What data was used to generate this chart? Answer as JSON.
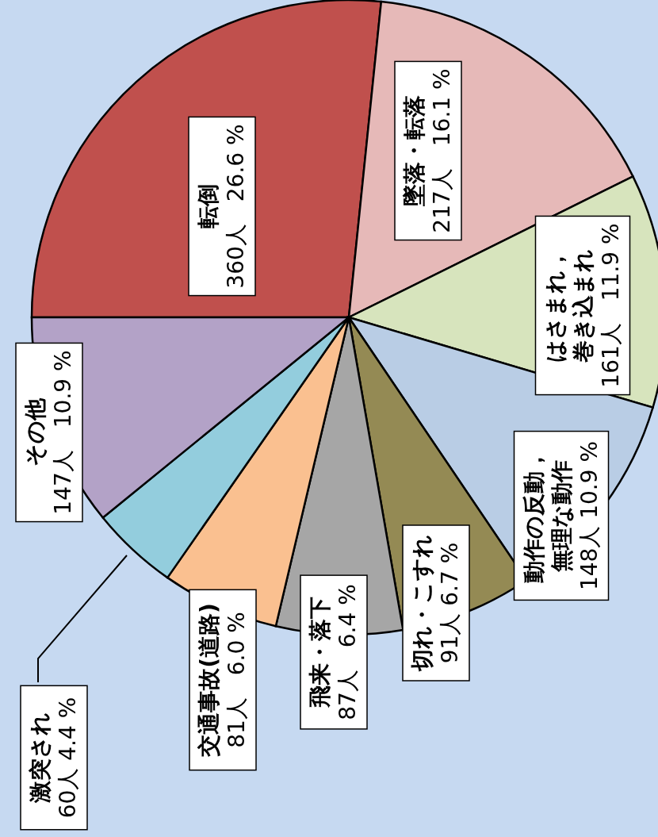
{
  "chart_data": {
    "type": "pie",
    "categories": [
      "転倒",
      "墜落・転落",
      "はさまれ，巻き込まれ",
      "動作の反動，無理な動作",
      "切れ・こすれ",
      "飛来・落下",
      "交通事故(道路)",
      "激突され",
      "その他"
    ],
    "values": [
      360,
      217,
      161,
      148,
      91,
      87,
      81,
      60,
      147
    ],
    "colors": [
      "#c0504d",
      "#e6b9b8",
      "#d7e4bd",
      "#b9cde5",
      "#948a54",
      "#a6a6a6",
      "#fac090",
      "#93cddd",
      "#b3a2c7"
    ],
    "value_labels": [
      "360人　26.6 %",
      "217人　16.1 %",
      "161人　11.9 %",
      "148人 10.9 %",
      "91人 6.7 %",
      "87人　6.4 %",
      "81人　6.0 %",
      "60人 4.4 %",
      "147人　10.9 %"
    ]
  }
}
